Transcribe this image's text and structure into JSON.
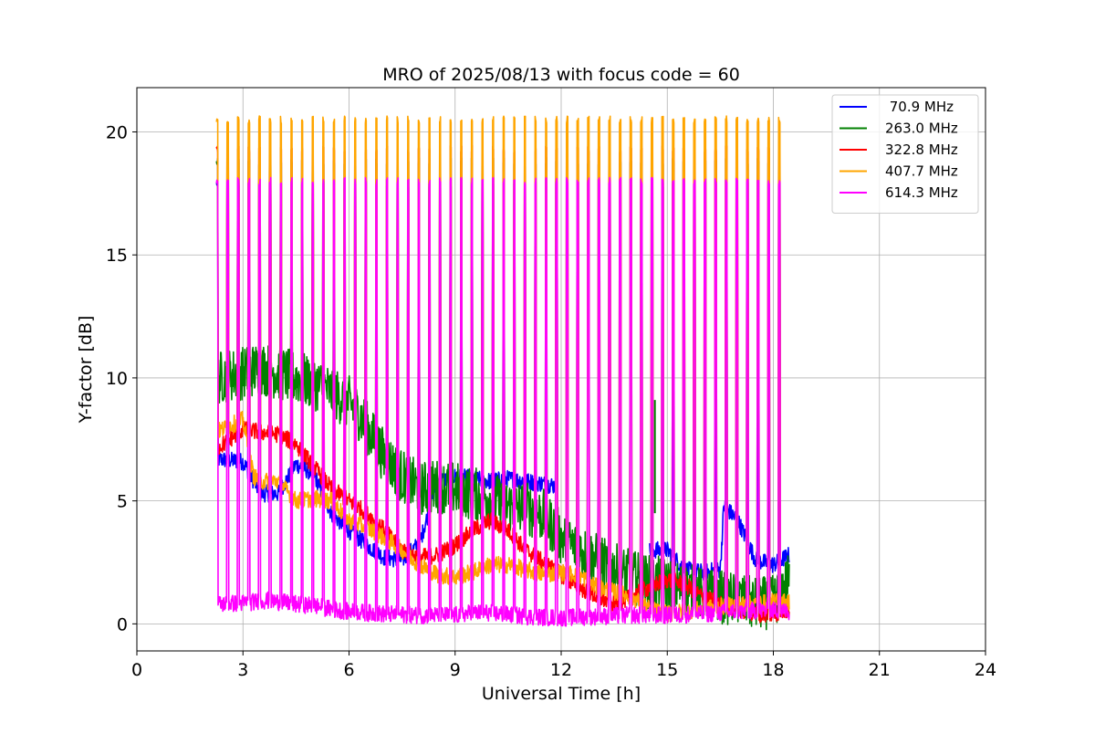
{
  "chart_data": {
    "type": "line",
    "title": "MRO of 2025/08/13 with focus code = 60",
    "xlabel": "Universal Time [h]",
    "ylabel": "Y-factor [dB]",
    "xlim": [
      0,
      24
    ],
    "ylim": [
      -1.1,
      21.8
    ],
    "xticks": [
      0,
      3,
      6,
      9,
      12,
      15,
      18,
      21,
      24
    ],
    "yticks": [
      0,
      5,
      10,
      15,
      20
    ],
    "grid": true,
    "legend_position": "top-right",
    "pulse_interval_h": 0.3,
    "pulse_width_h": 0.045,
    "series": [
      {
        "name": " 70.9 MHz",
        "color": "#0000ff",
        "peak": 17.9,
        "x": [
          2.25,
          3.0,
          3.5,
          4.0,
          4.5,
          5.0,
          5.5,
          6.0,
          6.5,
          7.0,
          7.5,
          8.0,
          8.5,
          9.0,
          9.5,
          10.0,
          10.5,
          11.0,
          11.5,
          11.9
        ],
        "values": [
          6.7,
          6.6,
          5.3,
          5.3,
          6.5,
          6.1,
          4.5,
          3.8,
          3.2,
          2.7,
          2.6,
          3.3,
          5.8,
          6.0,
          5.9,
          5.8,
          5.9,
          5.8,
          5.7,
          5.6
        ]
      },
      {
        "name": " 70.9 MHz",
        "color": "#0000ff",
        "peak": 17.9,
        "x": [
          14.5,
          15.0,
          15.5,
          16.0,
          16.5,
          16.6,
          17.0,
          17.5,
          18.0,
          18.45
        ],
        "values": [
          3.0,
          3.0,
          2.2,
          2.1,
          2.2,
          4.8,
          4.2,
          2.6,
          2.4,
          2.8
        ]
      },
      {
        "name": "263.0 MHz",
        "color": "#008000",
        "peak": 18.8,
        "x": [
          2.25,
          3.0,
          3.5,
          4.0,
          4.5,
          5.0,
          5.5,
          6.0,
          6.3,
          6.7,
          7.0,
          7.5,
          8.0,
          8.5,
          9.0,
          9.5,
          10.0,
          10.5,
          11.0,
          11.5,
          12.0,
          12.5,
          13.0,
          13.5,
          14.0,
          14.5,
          15.0,
          15.5,
          16.0,
          16.5,
          17.0,
          17.5,
          18.0,
          18.45
        ],
        "values": [
          10.0,
          10.2,
          10.4,
          10.2,
          10.0,
          9.8,
          9.4,
          9.0,
          8.5,
          7.5,
          6.8,
          6.0,
          5.5,
          5.6,
          5.5,
          5.3,
          5.1,
          4.8,
          4.7,
          4.4,
          3.5,
          3.0,
          2.6,
          2.2,
          1.9,
          1.7,
          1.6,
          1.4,
          1.2,
          1.1,
          1.0,
          0.8,
          0.9,
          1.8
        ],
        "amplitude": 1.1
      },
      {
        "name": "322.8 MHz",
        "color": "#ff0000",
        "peak": 19.3,
        "x": [
          2.25,
          3.0,
          3.5,
          4.0,
          4.5,
          5.0,
          5.5,
          6.0,
          6.5,
          7.0,
          7.5,
          8.0,
          8.5,
          9.0,
          9.5,
          10.0,
          10.5,
          11.0,
          11.5,
          12.0,
          12.5,
          13.0,
          13.5,
          14.0,
          14.5,
          15.0,
          15.5,
          16.0,
          16.5,
          17.0,
          17.5,
          18.0,
          18.45
        ],
        "values": [
          7.1,
          7.9,
          7.8,
          7.7,
          7.3,
          6.4,
          5.5,
          5.0,
          4.5,
          3.8,
          3.0,
          2.7,
          2.8,
          3.2,
          3.8,
          4.2,
          3.8,
          3.0,
          2.5,
          2.0,
          1.5,
          1.1,
          0.8,
          1.1,
          1.5,
          1.8,
          1.6,
          1.1,
          0.8,
          0.6,
          0.4,
          0.4,
          0.6
        ]
      },
      {
        "name": "407.7 MHz",
        "color": "#ffa500",
        "peak": 20.5,
        "x": [
          2.25,
          3.0,
          3.3,
          3.5,
          4.0,
          4.5,
          5.0,
          5.5,
          6.0,
          6.5,
          7.0,
          7.5,
          8.0,
          8.5,
          9.0,
          9.5,
          10.0,
          10.5,
          11.0,
          11.5,
          12.0,
          12.5,
          13.0,
          13.5,
          14.0,
          14.5,
          15.0,
          15.5,
          16.0,
          16.5,
          17.0,
          17.5,
          18.0,
          18.45
        ],
        "values": [
          7.8,
          8.3,
          6.0,
          5.8,
          5.8,
          5.0,
          5.1,
          5.0,
          4.2,
          3.9,
          3.5,
          3.0,
          2.4,
          2.0,
          1.9,
          2.1,
          2.4,
          2.4,
          2.2,
          2.0,
          2.1,
          2.0,
          1.5,
          1.3,
          1.1,
          0.6,
          0.4,
          0.5,
          0.6,
          0.7,
          0.8,
          0.8,
          0.9,
          0.9
        ]
      },
      {
        "name": "614.3 MHz",
        "color": "#ff00ff",
        "peak": 18.0,
        "x": [
          2.25,
          3.0,
          3.7,
          4.5,
          5.0,
          5.5,
          6.0,
          7.0,
          8.0,
          9.0,
          9.5,
          10.0,
          11.0,
          12.0,
          13.0,
          14.0,
          15.0,
          16.0,
          17.0,
          18.0,
          18.45
        ],
        "values": [
          0.8,
          0.85,
          0.95,
          0.8,
          0.75,
          0.6,
          0.5,
          0.4,
          0.35,
          0.35,
          0.45,
          0.45,
          0.3,
          0.25,
          0.3,
          0.35,
          0.35,
          0.4,
          0.5,
          0.55,
          0.5
        ]
      }
    ],
    "annotations": [
      {
        "series": "263.0 MHz",
        "x": 14.65,
        "y": 9.1,
        "type": "spike"
      }
    ]
  }
}
